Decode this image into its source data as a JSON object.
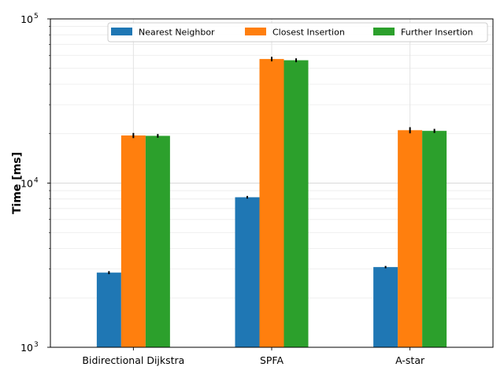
{
  "chart_data": {
    "type": "bar",
    "title": "",
    "xlabel": "",
    "ylabel": "Time [ms]",
    "yscale": "log",
    "ylim": [
      1000,
      100000
    ],
    "y_major_ticks": [
      {
        "value": 1000,
        "base": "10",
        "exp": "3"
      },
      {
        "value": 10000,
        "base": "10",
        "exp": "4"
      },
      {
        "value": 100000,
        "base": "10",
        "exp": "5"
      }
    ],
    "grid": true,
    "legend_position": "top-right",
    "legend_columns": 3,
    "categories": [
      "Bidirectional Dijkstra",
      "SPFA",
      "A-star"
    ],
    "series": [
      {
        "name": "Nearest Neighbor",
        "color": "#1f77b4",
        "values": [
          2850,
          8200,
          3080
        ],
        "errors": [
          60,
          150,
          50
        ]
      },
      {
        "name": "Closest Insertion",
        "color": "#ff7f0e",
        "values": [
          19500,
          57000,
          21000
        ],
        "errors": [
          700,
          1800,
          900
        ]
      },
      {
        "name": "Further Insertion",
        "color": "#2ca02c",
        "values": [
          19400,
          56000,
          20800
        ],
        "errors": [
          500,
          1500,
          600
        ]
      }
    ]
  }
}
